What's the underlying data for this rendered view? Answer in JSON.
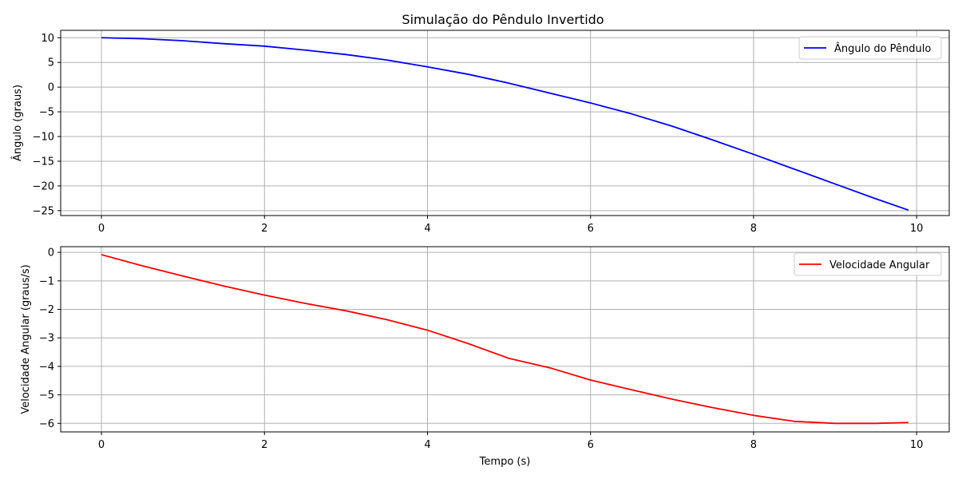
{
  "figure_title": "Simulação do Pêndulo Invertido",
  "chart_data": [
    {
      "type": "line",
      "title": "Simulação do Pêndulo Invertido",
      "xlabel": "",
      "ylabel": "Ângulo (graus)",
      "xlim": [
        -0.5,
        10.4
      ],
      "ylim": [
        -26,
        11.5
      ],
      "xticks": [
        0,
        2,
        4,
        6,
        8,
        10
      ],
      "yticks": [
        10,
        5,
        0,
        -5,
        -10,
        -15,
        -20,
        -25
      ],
      "xtick_labels": [
        "0",
        "2",
        "4",
        "6",
        "8",
        "10"
      ],
      "ytick_labels": [
        "10",
        "5",
        "0",
        "−5",
        "−10",
        "−15",
        "−20",
        "−25"
      ],
      "grid": true,
      "legend_position": "upper right",
      "series": [
        {
          "name": "Ângulo do Pêndulo",
          "color": "#0000ff",
          "x": [
            0,
            0.5,
            1,
            1.5,
            2,
            2.5,
            3,
            3.5,
            4,
            4.5,
            5,
            5.5,
            6,
            6.5,
            7,
            7.5,
            8,
            8.5,
            9,
            9.5,
            9.9
          ],
          "y": [
            10,
            9.8,
            9.4,
            8.8,
            8.3,
            7.5,
            6.6,
            5.5,
            4.1,
            2.6,
            0.8,
            -1.2,
            -3.2,
            -5.4,
            -7.9,
            -10.7,
            -13.6,
            -16.6,
            -19.6,
            -22.6,
            -24.9
          ]
        }
      ]
    },
    {
      "type": "line",
      "title": "",
      "xlabel": "Tempo (s)",
      "ylabel": "Velocidade Angular (graus/s)",
      "xlim": [
        -0.5,
        10.4
      ],
      "ylim": [
        -6.3,
        0.2
      ],
      "xticks": [
        0,
        2,
        4,
        6,
        8,
        10
      ],
      "yticks": [
        0,
        -1,
        -2,
        -3,
        -4,
        -5,
        -6
      ],
      "xtick_labels": [
        "0",
        "2",
        "4",
        "6",
        "8",
        "10"
      ],
      "ytick_labels": [
        "0",
        "−1",
        "−2",
        "−3",
        "−4",
        "−5",
        "−6"
      ],
      "grid": true,
      "legend_position": "upper right",
      "series": [
        {
          "name": "Velocidade Angular",
          "color": "#ff0000",
          "x": [
            0,
            0.5,
            1,
            1.5,
            2,
            2.5,
            3,
            3.5,
            4,
            4.5,
            5,
            5.5,
            6,
            6.5,
            7,
            7.5,
            8,
            8.5,
            9,
            9.5,
            9.9
          ],
          "y": [
            -0.08,
            -0.47,
            -0.83,
            -1.18,
            -1.5,
            -1.79,
            -2.05,
            -2.36,
            -2.73,
            -3.2,
            -3.72,
            -4.05,
            -4.48,
            -4.82,
            -5.15,
            -5.45,
            -5.72,
            -5.93,
            -6.0,
            -6.0,
            -5.97
          ]
        }
      ]
    }
  ]
}
